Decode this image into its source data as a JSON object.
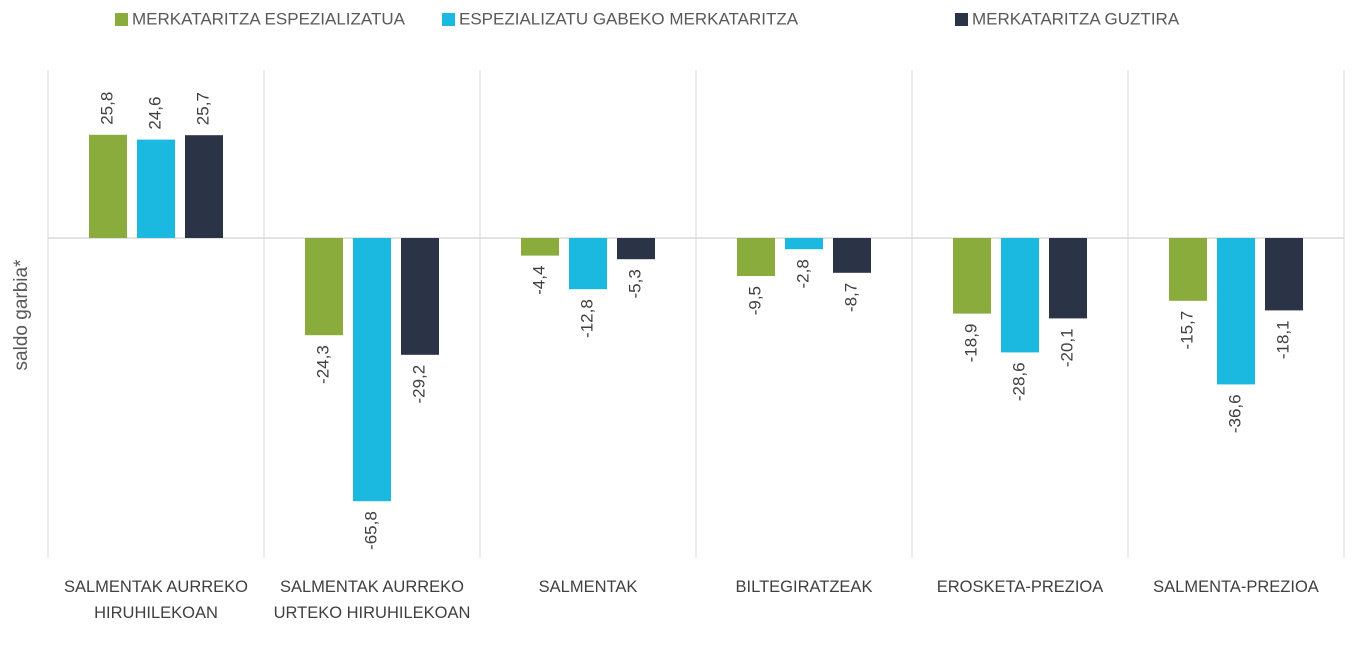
{
  "chart_data": {
    "type": "bar",
    "y_label": "saldo garbia*",
    "categories": [
      "SALMENTAK AURREKO HIRUHILEKOAN",
      "SALMENTAK AURREKO URTEKO HIRUHILEKOAN",
      "SALMENTAK",
      "BILTEGIRATZEAK",
      "EROSKETA-PREZIOA",
      "SALMENTA-PREZIOA"
    ],
    "series": [
      {
        "name": "MERKATARITZA ESPEZIALIZATUA",
        "color": "#8aac3c",
        "values": [
          25.8,
          -24.3,
          -4.4,
          -9.5,
          -18.9,
          -15.7
        ],
        "value_labels": [
          "25,8",
          "-24,3",
          "-4,4",
          "-9,5",
          "-18,9",
          "-15,7"
        ]
      },
      {
        "name": "ESPEZIALIZATU GABEKO MERKATARITZA",
        "color": "#1bb8e0",
        "values": [
          24.6,
          -65.8,
          -12.8,
          -2.8,
          -28.6,
          -36.6
        ],
        "value_labels": [
          "24,6",
          "-65,8",
          "-12,8",
          "-2,8",
          "-28,6",
          "-36,6"
        ]
      },
      {
        "name": "MERKATARITZA GUZTIRA",
        "color": "#2b3346",
        "values": [
          25.7,
          -29.2,
          -5.3,
          -8.7,
          -20.1,
          -18.1
        ],
        "value_labels": [
          "25,7",
          "-29,2",
          "-5,3",
          "-8,7",
          "-20,1",
          "-18,1"
        ]
      }
    ],
    "ylim": [
      -80,
      40
    ],
    "legend": "top"
  }
}
